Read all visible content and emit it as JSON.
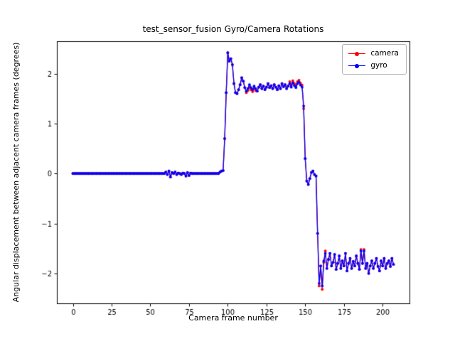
{
  "chart_data": {
    "type": "line",
    "title": "test_sensor_fusion Gyro/Camera Rotations",
    "xlabel": "Camera frame number",
    "ylabel": "Angular displacement between adjacent camera frames (degrees)",
    "xlim": [
      -10.35,
      217.35
    ],
    "ylim": [
      -2.6,
      2.65
    ],
    "xticks": [
      0,
      25,
      50,
      75,
      100,
      125,
      150,
      175,
      200
    ],
    "yticks": [
      -2,
      -1,
      0,
      1,
      2
    ],
    "x0": 0,
    "dx": 1,
    "grid": false,
    "legend_position": "upper right",
    "series": [
      {
        "name": "camera",
        "color": "#ff0000",
        "values": [
          0,
          0,
          0,
          0,
          0,
          0,
          0,
          0,
          0,
          0,
          0,
          0,
          0,
          0,
          0,
          0,
          0,
          0,
          0,
          0,
          0,
          0,
          0,
          0,
          0,
          0,
          0,
          0,
          0,
          0,
          0,
          0,
          0,
          0,
          0,
          0,
          0,
          0,
          0,
          0,
          0,
          0,
          0,
          0,
          0,
          0,
          0,
          0,
          0,
          0,
          0,
          0,
          0,
          0,
          0,
          0,
          0,
          0,
          0,
          0,
          0.03,
          -0.02,
          0.05,
          -0.07,
          0.02,
          0,
          0.03,
          -0.02,
          0.01,
          0,
          -0.02,
          0.01,
          0,
          -0.05,
          0.02,
          -0.04,
          0.01,
          0,
          0,
          0,
          0,
          0,
          0,
          0,
          0,
          0,
          0,
          0,
          0,
          0,
          0,
          0,
          0,
          0,
          0,
          0.03,
          0.05,
          0.06,
          0.7,
          1.62,
          2.42,
          2.25,
          2.3,
          2.18,
          1.8,
          1.62,
          1.6,
          1.68,
          1.78,
          1.92,
          1.85,
          1.72,
          1.62,
          1.66,
          1.74,
          1.68,
          1.64,
          1.71,
          1.66,
          1.65,
          1.73,
          1.78,
          1.7,
          1.75,
          1.68,
          1.73,
          1.8,
          1.72,
          1.76,
          1.7,
          1.78,
          1.73,
          1.68,
          1.76,
          1.7,
          1.8,
          1.74,
          1.78,
          1.7,
          1.75,
          1.84,
          1.77,
          1.86,
          1.8,
          1.76,
          1.84,
          1.87,
          1.81,
          1.77,
          1.3,
          0.3,
          -0.15,
          -0.22,
          -0.1,
          0.02,
          0.05,
          -0.02,
          -0.05,
          -1.2,
          -2.25,
          -1.85,
          -2.32,
          -1.78,
          -1.55,
          -1.9,
          -1.72,
          -1.6,
          -1.85,
          -1.78,
          -1.62,
          -1.92,
          -1.8,
          -1.65,
          -1.9,
          -1.75,
          -1.85,
          -1.6,
          -1.95,
          -1.8,
          -1.7,
          -1.9,
          -1.76,
          -1.85,
          -1.65,
          -1.8,
          -1.92,
          -1.52,
          -1.8,
          -1.52,
          -1.9,
          -1.8,
          -2.0,
          -1.85,
          -1.75,
          -1.9,
          -1.8,
          -1.7,
          -1.86,
          -1.95,
          -1.75,
          -1.85,
          -1.7,
          -1.9,
          -1.8,
          -1.75,
          -1.86,
          -1.7,
          -1.82
        ]
      },
      {
        "name": "gyro",
        "color": "#0000ff",
        "values": [
          0,
          0,
          0,
          0,
          0,
          0,
          0,
          0,
          0,
          0,
          0,
          0,
          0,
          0,
          0,
          0,
          0,
          0,
          0,
          0,
          0,
          0,
          0,
          0,
          0,
          0,
          0,
          0,
          0,
          0,
          0,
          0,
          0,
          0,
          0,
          0,
          0,
          0,
          0,
          0,
          0,
          0,
          0,
          0,
          0,
          0,
          0,
          0,
          0,
          0,
          0,
          0,
          0,
          0,
          0,
          0,
          0,
          0,
          0,
          0,
          0.03,
          -0.02,
          0.05,
          -0.07,
          0.02,
          0,
          0.03,
          -0.02,
          0.01,
          0,
          -0.02,
          0.01,
          0,
          -0.05,
          0.02,
          -0.04,
          0.01,
          0,
          0,
          0,
          0,
          0,
          0,
          0,
          0,
          0,
          0,
          0,
          0,
          0,
          0,
          0,
          0,
          0,
          0,
          0.03,
          0.05,
          0.06,
          0.7,
          1.62,
          2.42,
          2.25,
          2.3,
          2.18,
          1.8,
          1.62,
          1.6,
          1.68,
          1.78,
          1.92,
          1.85,
          1.72,
          1.65,
          1.7,
          1.78,
          1.72,
          1.68,
          1.75,
          1.7,
          1.65,
          1.73,
          1.78,
          1.7,
          1.75,
          1.68,
          1.73,
          1.8,
          1.72,
          1.76,
          1.7,
          1.78,
          1.73,
          1.68,
          1.76,
          1.7,
          1.8,
          1.74,
          1.78,
          1.7,
          1.75,
          1.8,
          1.73,
          1.82,
          1.76,
          1.72,
          1.8,
          1.83,
          1.77,
          1.73,
          1.35,
          0.3,
          -0.15,
          -0.22,
          -0.1,
          0.02,
          0.05,
          -0.02,
          -0.05,
          -1.2,
          -2.2,
          -1.85,
          -2.25,
          -1.75,
          -1.6,
          -1.9,
          -1.72,
          -1.6,
          -1.85,
          -1.78,
          -1.62,
          -1.92,
          -1.8,
          -1.65,
          -1.9,
          -1.75,
          -1.85,
          -1.6,
          -1.95,
          -1.8,
          -1.7,
          -1.9,
          -1.76,
          -1.85,
          -1.65,
          -1.8,
          -1.92,
          -1.55,
          -1.8,
          -1.55,
          -1.9,
          -1.8,
          -2.0,
          -1.85,
          -1.75,
          -1.9,
          -1.8,
          -1.7,
          -1.86,
          -1.95,
          -1.75,
          -1.85,
          -1.7,
          -1.9,
          -1.8,
          -1.75,
          -1.86,
          -1.7,
          -1.82
        ]
      }
    ]
  }
}
